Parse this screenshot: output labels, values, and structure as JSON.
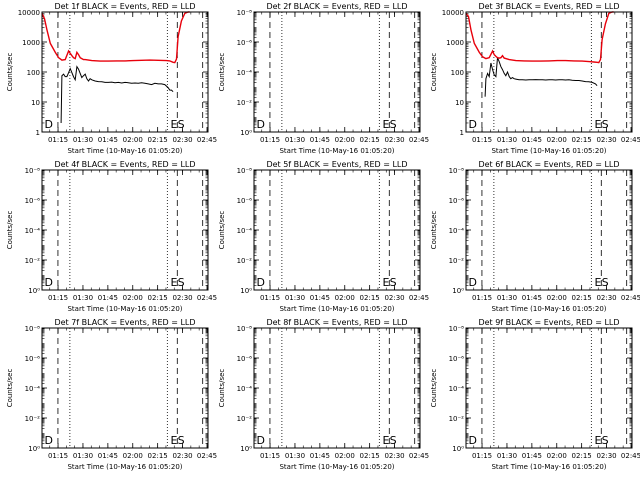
{
  "chart_data": [
    {
      "type": "line",
      "detector": "1f",
      "title": "Det 1f BLACK = Events, RED = LLD",
      "xlabel": "Start Time (10-May-16 01:05:20)",
      "ylabel": "Counts/sec",
      "yscale": "log",
      "ylim": [
        1,
        10000
      ],
      "ytick_labels": [
        "1",
        "10",
        "100",
        "1000",
        "10000"
      ],
      "xtick_labels": [
        "01:15",
        "01:30",
        "01:45",
        "02:00",
        "02:15",
        "02:30",
        "02:45"
      ],
      "xlim_minutes": [
        0,
        100
      ],
      "dashed_lines_minutes": [
        9.6,
        81.5,
        96.8
      ],
      "dotted_lines_minutes": [
        16.8,
        75.5
      ],
      "markers": [
        {
          "label": "D",
          "x_minutes": 1.5
        },
        {
          "label": "E",
          "x_minutes": 77.4
        },
        {
          "label": "S",
          "x_minutes": 81.7
        }
      ],
      "series": [
        {
          "name": "BLACK",
          "color": "#000000",
          "x_minutes": [
            11.5,
            12,
            13,
            14,
            15,
            16,
            17,
            18,
            19,
            20,
            21,
            22,
            23,
            24,
            25,
            26,
            27,
            28,
            29,
            30,
            32,
            34,
            36,
            38,
            40,
            42,
            44,
            46,
            48,
            50,
            52,
            54,
            56,
            58,
            60,
            62,
            64,
            66,
            68,
            70,
            72,
            74,
            76,
            77,
            78,
            79
          ],
          "values": [
            2,
            75,
            85,
            70,
            70,
            95,
            130,
            95,
            70,
            55,
            150,
            125,
            90,
            65,
            75,
            85,
            60,
            50,
            60,
            55,
            50,
            48,
            47,
            45,
            45,
            46,
            44,
            45,
            43,
            45,
            44,
            42,
            43,
            42,
            44,
            42,
            40,
            38,
            42,
            40,
            40,
            38,
            30,
            25,
            25,
            22
          ]
        },
        {
          "name": "RED",
          "color": "#e8000b",
          "x_minutes": [
            0,
            1.5,
            3,
            5,
            8,
            10,
            12,
            14,
            16,
            17,
            18,
            19,
            20,
            21,
            22,
            23,
            24,
            25,
            26,
            28,
            30,
            35,
            40,
            45,
            50,
            55,
            60,
            65,
            70,
            75,
            77,
            79,
            80,
            81,
            82,
            84,
            86,
            88,
            89
          ],
          "values": [
            9000,
            6000,
            2500,
            900,
            450,
            300,
            250,
            260,
            500,
            420,
            350,
            300,
            280,
            450,
            380,
            300,
            280,
            260,
            260,
            250,
            240,
            230,
            230,
            235,
            235,
            240,
            245,
            250,
            245,
            240,
            235,
            210,
            205,
            270,
            1500,
            5000,
            9000,
            10000,
            10000
          ]
        }
      ]
    },
    {
      "type": "line",
      "detector": "2f",
      "title": "Det 2f BLACK = Events, RED = LLD",
      "xlabel": "Start Time (10-May-16 01:05:20)",
      "ylabel": "Counts/sec",
      "yscale": "log",
      "ylim": [
        1,
        1e-08
      ],
      "ytick_labels": [
        "10⁰",
        "10⁻²",
        "10⁻⁴",
        "10⁻⁶",
        "10⁻⁸"
      ],
      "xtick_labels": [
        "01:15",
        "01:30",
        "01:45",
        "02:00",
        "02:15",
        "02:30",
        "02:45"
      ],
      "xlim_minutes": [
        0,
        100
      ],
      "dashed_lines_minutes": [
        9.6,
        81.5,
        96.8
      ],
      "dotted_lines_minutes": [
        16.8,
        75.5
      ],
      "markers": [
        {
          "label": "D",
          "x_minutes": 1.5
        },
        {
          "label": "E",
          "x_minutes": 77.4
        },
        {
          "label": "S",
          "x_minutes": 81.7
        }
      ],
      "series": []
    },
    {
      "type": "line",
      "detector": "3f",
      "title": "Det 3f BLACK = Events, RED = LLD",
      "xlabel": "Start Time (10-May-16 01:05:20)",
      "ylabel": "Counts/sec",
      "yscale": "log",
      "ylim": [
        1,
        10000
      ],
      "ytick_labels": [
        "1",
        "10",
        "100",
        "1000",
        "10000"
      ],
      "xtick_labels": [
        "01:15",
        "01:30",
        "01:45",
        "02:00",
        "02:15",
        "02:30",
        "02:45"
      ],
      "xlim_minutes": [
        0,
        100
      ],
      "dashed_lines_minutes": [
        9.6,
        81.5,
        96.8
      ],
      "dotted_lines_minutes": [
        16.8,
        75.5
      ],
      "markers": [
        {
          "label": "D",
          "x_minutes": 1.5
        },
        {
          "label": "E",
          "x_minutes": 77.4
        },
        {
          "label": "S",
          "x_minutes": 81.7
        }
      ],
      "series": [
        {
          "name": "BLACK",
          "color": "#000000",
          "x_minutes": [
            11.5,
            12,
            13,
            14,
            15,
            16,
            17,
            18,
            19,
            20,
            21,
            22,
            23,
            24,
            25,
            26,
            27,
            28,
            29,
            30,
            32,
            34,
            36,
            38,
            40,
            42,
            44,
            46,
            48,
            50,
            52,
            54,
            56,
            58,
            60,
            62,
            64,
            66,
            68,
            70,
            72,
            74,
            76,
            78,
            79
          ],
          "values": [
            15,
            60,
            90,
            70,
            200,
            120,
            80,
            70,
            300,
            220,
            150,
            120,
            90,
            75,
            100,
            70,
            60,
            65,
            60,
            58,
            55,
            55,
            54,
            55,
            55,
            56,
            55,
            55,
            54,
            55,
            55,
            54,
            55,
            55,
            54,
            55,
            53,
            52,
            52,
            50,
            48,
            47,
            45,
            40,
            35
          ]
        },
        {
          "name": "RED",
          "color": "#e8000b",
          "x_minutes": [
            0,
            1.5,
            3,
            5,
            8,
            10,
            12,
            14,
            16,
            17,
            18,
            19,
            20,
            21,
            22,
            23,
            24,
            25,
            26,
            28,
            30,
            35,
            40,
            45,
            50,
            55,
            60,
            65,
            70,
            75,
            77,
            79,
            80,
            81,
            82,
            84,
            86,
            88,
            89
          ],
          "values": [
            9000,
            7000,
            2500,
            900,
            450,
            320,
            280,
            300,
            500,
            380,
            330,
            300,
            290,
            300,
            350,
            290,
            280,
            270,
            260,
            250,
            240,
            235,
            230,
            230,
            235,
            240,
            240,
            235,
            230,
            220,
            215,
            210,
            205,
            260,
            1200,
            4000,
            9000,
            10000,
            10000
          ]
        }
      ]
    },
    {
      "type": "line",
      "detector": "4f",
      "title": "Det 4f BLACK = Events, RED = LLD",
      "xlabel": "Start Time (10-May-16 01:05:20)",
      "ylabel": "Counts/sec",
      "yscale": "log",
      "ylim": [
        1,
        1e-08
      ],
      "ytick_labels": [
        "10⁰",
        "10⁻²",
        "10⁻⁴",
        "10⁻⁶",
        "10⁻⁸"
      ],
      "xtick_labels": [
        "01:15",
        "01:30",
        "01:45",
        "02:00",
        "02:15",
        "02:30",
        "02:45"
      ],
      "xlim_minutes": [
        0,
        100
      ],
      "dashed_lines_minutes": [
        9.6,
        81.5,
        96.8
      ],
      "dotted_lines_minutes": [
        16.8,
        75.5
      ],
      "markers": [
        {
          "label": "D",
          "x_minutes": 1.5
        },
        {
          "label": "E",
          "x_minutes": 77.4
        },
        {
          "label": "S",
          "x_minutes": 81.7
        }
      ],
      "series": []
    },
    {
      "type": "line",
      "detector": "5f",
      "title": "Det 5f BLACK = Events, RED = LLD",
      "xlabel": "Start Time (10-May-16 01:05:20)",
      "ylabel": "Counts/sec",
      "yscale": "log",
      "ylim": [
        1,
        1e-08
      ],
      "ytick_labels": [
        "10⁰",
        "10⁻²",
        "10⁻⁴",
        "10⁻⁶",
        "10⁻⁸"
      ],
      "xtick_labels": [
        "01:15",
        "01:30",
        "01:45",
        "02:00",
        "02:15",
        "02:30",
        "02:45"
      ],
      "xlim_minutes": [
        0,
        100
      ],
      "dashed_lines_minutes": [
        9.6,
        81.5,
        96.8
      ],
      "dotted_lines_minutes": [
        16.8,
        75.5
      ],
      "markers": [
        {
          "label": "D",
          "x_minutes": 1.5
        },
        {
          "label": "E",
          "x_minutes": 77.4
        },
        {
          "label": "S",
          "x_minutes": 81.7
        }
      ],
      "series": []
    },
    {
      "type": "line",
      "detector": "6f",
      "title": "Det 6f BLACK = Events, RED = LLD",
      "xlabel": "Start Time (10-May-16 01:05:20)",
      "ylabel": "Counts/sec",
      "yscale": "log",
      "ylim": [
        1,
        1e-08
      ],
      "ytick_labels": [
        "10⁰",
        "10⁻²",
        "10⁻⁴",
        "10⁻⁶",
        "10⁻⁸"
      ],
      "xtick_labels": [
        "01:15",
        "01:30",
        "01:45",
        "02:00",
        "02:15",
        "02:30",
        "02:45"
      ],
      "xlim_minutes": [
        0,
        100
      ],
      "dashed_lines_minutes": [
        9.6,
        81.5,
        96.8
      ],
      "dotted_lines_minutes": [
        16.8,
        75.5
      ],
      "markers": [
        {
          "label": "D",
          "x_minutes": 1.5
        },
        {
          "label": "E",
          "x_minutes": 77.4
        },
        {
          "label": "S",
          "x_minutes": 81.7
        }
      ],
      "series": []
    },
    {
      "type": "line",
      "detector": "7f",
      "title": "Det 7f BLACK = Events, RED = LLD",
      "xlabel": "Start Time (10-May-16 01:05:20)",
      "ylabel": "Counts/sec",
      "yscale": "log",
      "ylim": [
        1,
        1e-08
      ],
      "ytick_labels": [
        "10⁰",
        "10⁻²",
        "10⁻⁴",
        "10⁻⁶",
        "10⁻⁸"
      ],
      "xtick_labels": [
        "01:15",
        "01:30",
        "01:45",
        "02:00",
        "02:15",
        "02:30",
        "02:45"
      ],
      "xlim_minutes": [
        0,
        100
      ],
      "dashed_lines_minutes": [
        9.6,
        81.5,
        96.8
      ],
      "dotted_lines_minutes": [
        16.8,
        75.5
      ],
      "markers": [
        {
          "label": "D",
          "x_minutes": 1.5
        },
        {
          "label": "E",
          "x_minutes": 77.4
        },
        {
          "label": "S",
          "x_minutes": 81.7
        }
      ],
      "series": []
    },
    {
      "type": "line",
      "detector": "8f",
      "title": "Det 8f BLACK = Events, RED = LLD",
      "xlabel": "Start Time (10-May-16 01:05:20)",
      "ylabel": "Counts/sec",
      "yscale": "log",
      "ylim": [
        1,
        1e-08
      ],
      "ytick_labels": [
        "10⁰",
        "10⁻²",
        "10⁻⁴",
        "10⁻⁶",
        "10⁻⁸"
      ],
      "xtick_labels": [
        "01:15",
        "01:30",
        "01:45",
        "02:00",
        "02:15",
        "02:30",
        "02:45"
      ],
      "xlim_minutes": [
        0,
        100
      ],
      "dashed_lines_minutes": [
        9.6,
        81.5,
        96.8
      ],
      "dotted_lines_minutes": [
        16.8,
        75.5
      ],
      "markers": [
        {
          "label": "D",
          "x_minutes": 1.5
        },
        {
          "label": "E",
          "x_minutes": 77.4
        },
        {
          "label": "S",
          "x_minutes": 81.7
        }
      ],
      "series": []
    },
    {
      "type": "line",
      "detector": "9f",
      "title": "Det 9f BLACK = Events, RED = LLD",
      "xlabel": "Start Time (10-May-16 01:05:20)",
      "ylabel": "Counts/sec",
      "yscale": "log",
      "ylim": [
        1,
        1e-08
      ],
      "ytick_labels": [
        "10⁰",
        "10⁻²",
        "10⁻⁴",
        "10⁻⁶",
        "10⁻⁸"
      ],
      "xtick_labels": [
        "01:15",
        "01:30",
        "01:45",
        "02:00",
        "02:15",
        "02:30",
        "02:45"
      ],
      "xlim_minutes": [
        0,
        100
      ],
      "dashed_lines_minutes": [
        9.6,
        81.5,
        96.8
      ],
      "dotted_lines_minutes": [
        16.8,
        75.5
      ],
      "markers": [
        {
          "label": "D",
          "x_minutes": 1.5
        },
        {
          "label": "E",
          "x_minutes": 77.4
        },
        {
          "label": "S",
          "x_minutes": 81.7
        }
      ],
      "series": []
    }
  ]
}
